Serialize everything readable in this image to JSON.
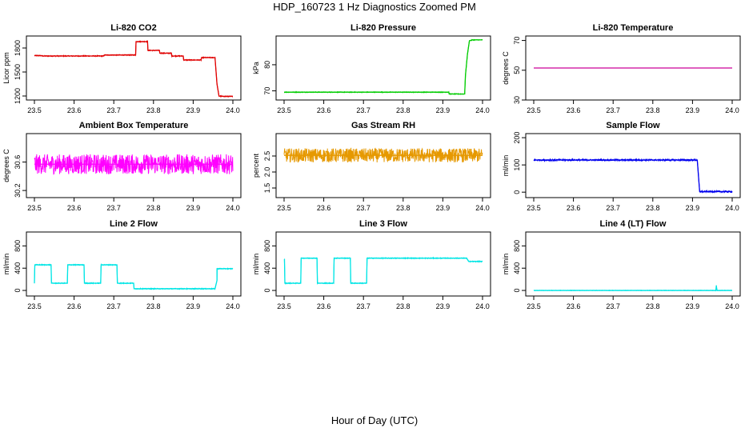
{
  "figure": {
    "title": "HDP_160723  1 Hz Diagnostics Zoomed PM",
    "xlabel": "Hour of Day (UTC)"
  },
  "chart_data": [
    {
      "type": "line",
      "title": "Li-820 CO2",
      "ylabel": "Licor ppm",
      "xlim": [
        23.5,
        24.0
      ],
      "ylim": [
        1150,
        1950
      ],
      "xticks": [
        23.5,
        23.6,
        23.7,
        23.8,
        23.9,
        24.0
      ],
      "xtick_labels": [
        "23.5",
        "23.6",
        "23.7",
        "23.8",
        "23.9",
        "24.0"
      ],
      "yticks": [
        1200,
        1500,
        1800
      ],
      "ytick_labels": [
        "1200",
        "1500",
        "1800"
      ],
      "color": "#e00000",
      "noise": 6,
      "series": [
        {
          "x": [
            23.5,
            23.518,
            23.519,
            23.675,
            23.676,
            23.755,
            23.756,
            23.785,
            23.786,
            23.815,
            23.816,
            23.845,
            23.846,
            23.875,
            23.876,
            23.92,
            23.921,
            23.955,
            23.96,
            23.965,
            23.975,
            24.0
          ],
          "y": [
            1705,
            1705,
            1700,
            1700,
            1712,
            1712,
            1880,
            1880,
            1770,
            1770,
            1735,
            1735,
            1700,
            1700,
            1650,
            1650,
            1680,
            1680,
            1350,
            1200,
            1195,
            1195
          ]
        }
      ]
    },
    {
      "type": "line",
      "title": "Li-820 Pressure",
      "ylabel": "kPa",
      "xlim": [
        23.5,
        24.0
      ],
      "ylim": [
        66.5,
        91
      ],
      "xticks": [
        23.5,
        23.6,
        23.7,
        23.8,
        23.9,
        24.0
      ],
      "xtick_labels": [
        "23.5",
        "23.6",
        "23.7",
        "23.8",
        "23.9",
        "24.0"
      ],
      "yticks": [
        70,
        80
      ],
      "ytick_labels": [
        "70",
        "80"
      ],
      "color": "#00cc00",
      "noise": 0.15,
      "series": [
        {
          "x": [
            23.5,
            23.915,
            23.916,
            23.955,
            23.957,
            23.962,
            23.967,
            23.975,
            24.0
          ],
          "y": [
            69.5,
            69.5,
            68.8,
            68.8,
            76.0,
            84.0,
            89.2,
            89.5,
            89.5
          ]
        }
      ]
    },
    {
      "type": "line",
      "title": "Li-820 Temperature",
      "ylabel": "degrees C",
      "xlim": [
        23.5,
        24.0
      ],
      "ylim": [
        30,
        73
      ],
      "xticks": [
        23.5,
        23.6,
        23.7,
        23.8,
        23.9,
        24.0
      ],
      "xtick_labels": [
        "23.5",
        "23.6",
        "23.7",
        "23.8",
        "23.9",
        "24.0"
      ],
      "yticks": [
        30,
        50,
        70
      ],
      "ytick_labels": [
        "30",
        "50",
        "70"
      ],
      "color": "#cc0099",
      "noise": 0,
      "series": [
        {
          "x": [
            23.5,
            24.0
          ],
          "y": [
            51.5,
            51.5
          ]
        }
      ]
    },
    {
      "type": "line",
      "title": "Ambient Box Temperature",
      "ylabel": "degrees C",
      "xlim": [
        23.5,
        24.0
      ],
      "ylim": [
        30.1,
        31.0
      ],
      "xticks": [
        23.5,
        23.6,
        23.7,
        23.8,
        23.9,
        24.0
      ],
      "xtick_labels": [
        "23.5",
        "23.6",
        "23.7",
        "23.8",
        "23.9",
        "24.0"
      ],
      "yticks": [
        30.2,
        30.6
      ],
      "ytick_labels": [
        "30.2",
        "30.6"
      ],
      "color": "#ff00ff",
      "noise": 0.14,
      "series": [
        {
          "x": [
            23.5,
            24.0
          ],
          "y": [
            30.57,
            30.57
          ]
        }
      ]
    },
    {
      "type": "line",
      "title": "Gas Stream RH",
      "ylabel": "percent",
      "xlim": [
        23.5,
        24.0
      ],
      "ylim": [
        1.2,
        3.2
      ],
      "xticks": [
        23.5,
        23.6,
        23.7,
        23.8,
        23.9,
        24.0
      ],
      "xtick_labels": [
        "23.5",
        "23.6",
        "23.7",
        "23.8",
        "23.9",
        "24.0"
      ],
      "yticks": [
        1.5,
        2.0,
        2.5
      ],
      "ytick_labels": [
        "1.5",
        "2.0",
        "2.5"
      ],
      "color": "#e69900",
      "noise": 0.22,
      "series": [
        {
          "x": [
            23.5,
            24.0
          ],
          "y": [
            2.52,
            2.52
          ]
        }
      ]
    },
    {
      "type": "line",
      "title": "Sample Flow",
      "ylabel": "ml/min",
      "xlim": [
        23.5,
        24.0
      ],
      "ylim": [
        -20,
        215
      ],
      "xticks": [
        23.5,
        23.6,
        23.7,
        23.8,
        23.9,
        24.0
      ],
      "xtick_labels": [
        "23.5",
        "23.6",
        "23.7",
        "23.8",
        "23.9",
        "24.0"
      ],
      "yticks": [
        0,
        100,
        200
      ],
      "ytick_labels": [
        "0",
        "100",
        "200"
      ],
      "color": "#0000ee",
      "noise": 3,
      "series": [
        {
          "x": [
            23.5,
            23.912,
            23.915,
            23.918,
            24.0
          ],
          "y": [
            118,
            118,
            60,
            2,
            2
          ]
        }
      ]
    },
    {
      "type": "line",
      "title": "Line 2 Flow",
      "ylabel": "ml/min",
      "xlim": [
        23.5,
        24.0
      ],
      "ylim": [
        -100,
        1050
      ],
      "xticks": [
        23.5,
        23.6,
        23.7,
        23.8,
        23.9,
        24.0
      ],
      "xtick_labels": [
        "23.5",
        "23.6",
        "23.7",
        "23.8",
        "23.9",
        "24.0"
      ],
      "yticks": [
        0,
        400,
        800
      ],
      "ytick_labels": [
        "0",
        "400",
        "800"
      ],
      "color": "#00e5e5",
      "noise": 8,
      "series": [
        {
          "x": [
            23.5,
            23.501,
            23.542,
            23.543,
            23.583,
            23.584,
            23.625,
            23.626,
            23.667,
            23.668,
            23.708,
            23.709,
            23.75,
            23.751,
            23.955,
            23.96,
            23.96,
            24.0
          ],
          "y": [
            130,
            460,
            460,
            130,
            130,
            460,
            460,
            130,
            130,
            460,
            460,
            130,
            130,
            30,
            30,
            180,
            390,
            390
          ]
        }
      ]
    },
    {
      "type": "line",
      "title": "Line 3 Flow",
      "ylabel": "ml/min",
      "xlim": [
        23.5,
        24.0
      ],
      "ylim": [
        -100,
        1050
      ],
      "xticks": [
        23.5,
        23.6,
        23.7,
        23.8,
        23.9,
        24.0
      ],
      "xtick_labels": [
        "23.5",
        "23.6",
        "23.7",
        "23.8",
        "23.9",
        "24.0"
      ],
      "yticks": [
        0,
        400,
        800
      ],
      "ytick_labels": [
        "0",
        "400",
        "800"
      ],
      "color": "#00e5e5",
      "noise": 8,
      "series": [
        {
          "x": [
            23.5,
            23.501,
            23.502,
            23.542,
            23.543,
            23.583,
            23.584,
            23.625,
            23.626,
            23.667,
            23.668,
            23.708,
            23.709,
            23.96,
            23.965,
            24.0
          ],
          "y": [
            560,
            560,
            130,
            130,
            580,
            580,
            130,
            130,
            580,
            580,
            130,
            130,
            580,
            580,
            520,
            520
          ]
        }
      ]
    },
    {
      "type": "line",
      "title": "Line 4 (LT) Flow",
      "ylabel": "ml/min",
      "xlim": [
        23.5,
        24.0
      ],
      "ylim": [
        -100,
        1050
      ],
      "xticks": [
        23.5,
        23.6,
        23.7,
        23.8,
        23.9,
        24.0
      ],
      "xtick_labels": [
        "23.5",
        "23.6",
        "23.7",
        "23.8",
        "23.9",
        "24.0"
      ],
      "yticks": [
        0,
        400,
        800
      ],
      "ytick_labels": [
        "0",
        "400",
        "800"
      ],
      "color": "#00e5e5",
      "noise": 4,
      "series": [
        {
          "x": [
            23.5,
            23.959,
            23.96,
            23.961,
            23.962,
            24.0
          ],
          "y": [
            0,
            0,
            90,
            30,
            0,
            0
          ]
        }
      ]
    }
  ]
}
